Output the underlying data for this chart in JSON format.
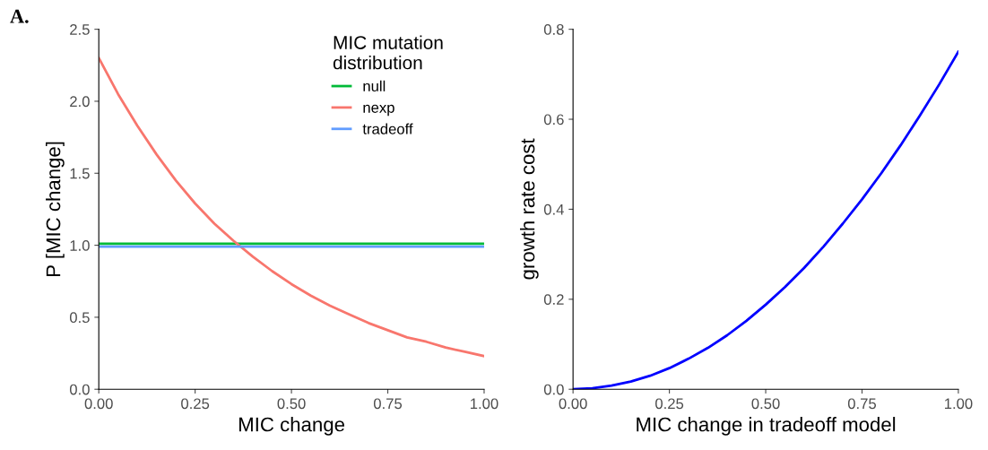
{
  "chart_data": [
    {
      "type": "line",
      "title": "A.",
      "xlabel": "MIC change",
      "ylabel": "P [MIC change]",
      "legend_title": "MIC mutation distribution",
      "legend": "top right",
      "grid": false,
      "x": [
        0,
        0.05,
        0.1,
        0.15,
        0.2,
        0.25,
        0.3,
        0.35,
        0.4,
        0.45,
        0.5,
        0.55,
        0.6,
        0.65,
        0.7,
        0.75,
        0.8,
        0.85,
        0.9,
        0.95,
        1.0
      ],
      "series": [
        {
          "name": "null",
          "color": "#00ba38",
          "values": [
            1.01,
            1.01,
            1.01,
            1.01,
            1.01,
            1.01,
            1.01,
            1.01,
            1.01,
            1.01,
            1.01,
            1.01,
            1.01,
            1.01,
            1.01,
            1.01,
            1.01,
            1.01,
            1.01,
            1.01,
            1.01
          ]
        },
        {
          "name": "nexp",
          "color": "#f8766d",
          "values": [
            2.3,
            2.05,
            1.83,
            1.63,
            1.45,
            1.29,
            1.15,
            1.03,
            0.92,
            0.82,
            0.73,
            0.65,
            0.58,
            0.52,
            0.46,
            0.41,
            0.36,
            0.33,
            0.29,
            0.26,
            0.23
          ]
        },
        {
          "name": "tradeoff",
          "color": "#619cff",
          "values": [
            0.99,
            0.99,
            0.99,
            0.99,
            0.99,
            0.99,
            0.99,
            0.99,
            0.99,
            0.99,
            0.99,
            0.99,
            0.99,
            0.99,
            0.99,
            0.99,
            0.99,
            0.99,
            0.99,
            0.99,
            0.99
          ]
        }
      ],
      "xlim": [
        0,
        1.0
      ],
      "xticks": [
        {
          "value": 0,
          "label": "0.00"
        },
        {
          "value": 0.25,
          "label": "0.25"
        },
        {
          "value": 0.5,
          "label": "0.50"
        },
        {
          "value": 0.75,
          "label": "0.75"
        },
        {
          "value": 1.0,
          "label": "1.00"
        }
      ],
      "ylim": [
        0,
        2.5
      ],
      "yticks": [
        {
          "value": 0,
          "label": "0.0"
        },
        {
          "value": 0.5,
          "label": "0.5"
        },
        {
          "value": 1.0,
          "label": "1.0"
        },
        {
          "value": 1.5,
          "label": "1.5"
        },
        {
          "value": 2.0,
          "label": "2.0"
        },
        {
          "value": 2.5,
          "label": "2.5"
        }
      ]
    },
    {
      "type": "line",
      "xlabel": "MIC change in tradeoff model",
      "ylabel": "growth rate cost",
      "grid": false,
      "legend": false,
      "x": [
        0,
        0.05,
        0.1,
        0.15,
        0.2,
        0.25,
        0.3,
        0.35,
        0.4,
        0.45,
        0.5,
        0.55,
        0.6,
        0.65,
        0.7,
        0.75,
        0.8,
        0.85,
        0.9,
        0.95,
        1.0
      ],
      "series": [
        {
          "color": "#0000ff",
          "values": [
            0,
            0.002,
            0.008,
            0.017,
            0.03,
            0.047,
            0.068,
            0.092,
            0.12,
            0.152,
            0.188,
            0.227,
            0.27,
            0.317,
            0.368,
            0.422,
            0.48,
            0.542,
            0.608,
            0.677,
            0.75
          ]
        }
      ],
      "xlim": [
        0,
        1.0
      ],
      "xticks": [
        {
          "value": 0,
          "label": "0.00"
        },
        0.25,
        {
          "value": 0.5,
          "label": "0.50"
        },
        0.75,
        {
          "value": 1.0,
          "label": "1.00"
        }
      ],
      "ylim": [
        0,
        0.8
      ],
      "yticks": [
        {
          "value": 0,
          "label": "0.0"
        },
        0.2,
        0.4,
        0.6,
        0.8
      ]
    }
  ]
}
